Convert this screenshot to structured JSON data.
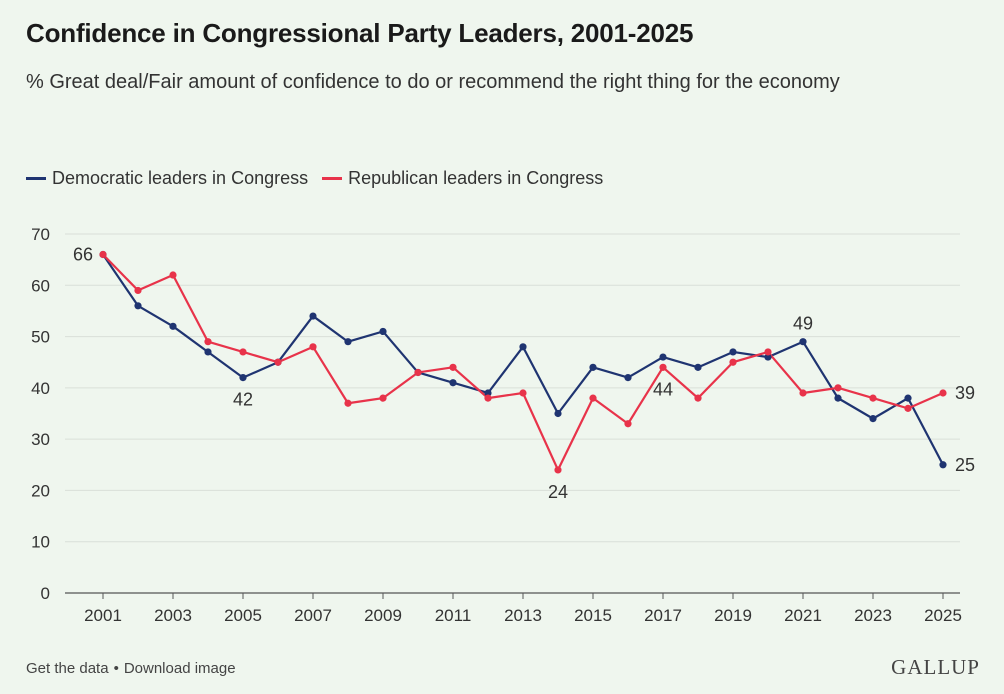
{
  "header": {
    "title": "Confidence in Congressional Party Leaders, 2001-2025",
    "subtitle": "% Great deal/Fair amount of confidence to do or recommend the right thing for the economy"
  },
  "footer": {
    "get_data_label": "Get the data",
    "separator": "•",
    "download_label": "Download image",
    "brand": "GALLUP"
  },
  "chart_data": {
    "type": "line",
    "x": [
      2001,
      2002,
      2003,
      2004,
      2005,
      2006,
      2007,
      2008,
      2009,
      2010,
      2011,
      2012,
      2013,
      2014,
      2015,
      2016,
      2017,
      2018,
      2019,
      2020,
      2021,
      2022,
      2023,
      2024,
      2025
    ],
    "xticks": [
      "2001",
      "2003",
      "2005",
      "2007",
      "2009",
      "2011",
      "2013",
      "2015",
      "2017",
      "2019",
      "2021",
      "2023",
      "2025"
    ],
    "yticks": [
      "0",
      "10",
      "20",
      "30",
      "40",
      "50",
      "60",
      "70"
    ],
    "ylim": [
      0,
      70
    ],
    "grid": true,
    "legend_position": "top-left",
    "series": [
      {
        "name": "Democratic leaders in Congress",
        "color": "#1f3471",
        "values": [
          66,
          56,
          52,
          47,
          42,
          45,
          54,
          49,
          51,
          43,
          41,
          39,
          48,
          35,
          44,
          42,
          46,
          44,
          47,
          46,
          49,
          38,
          34,
          38,
          25
        ]
      },
      {
        "name": "Republican leaders in Congress",
        "color": "#e8334a",
        "values": [
          66,
          59,
          62,
          49,
          47,
          45,
          48,
          37,
          38,
          43,
          44,
          38,
          39,
          24,
          38,
          33,
          44,
          38,
          45,
          47,
          39,
          40,
          38,
          36,
          39
        ]
      }
    ],
    "annotations": [
      {
        "series": 0,
        "year": 2001,
        "text": "66",
        "pos": "left"
      },
      {
        "series": 0,
        "year": 2005,
        "text": "42",
        "pos": "below"
      },
      {
        "series": 1,
        "year": 2014,
        "text": "24",
        "pos": "below"
      },
      {
        "series": 1,
        "year": 2017,
        "text": "44",
        "pos": "below"
      },
      {
        "series": 0,
        "year": 2021,
        "text": "49",
        "pos": "above"
      },
      {
        "series": 1,
        "year": 2025,
        "text": "39",
        "pos": "right"
      },
      {
        "series": 0,
        "year": 2025,
        "text": "25",
        "pos": "right"
      }
    ]
  }
}
